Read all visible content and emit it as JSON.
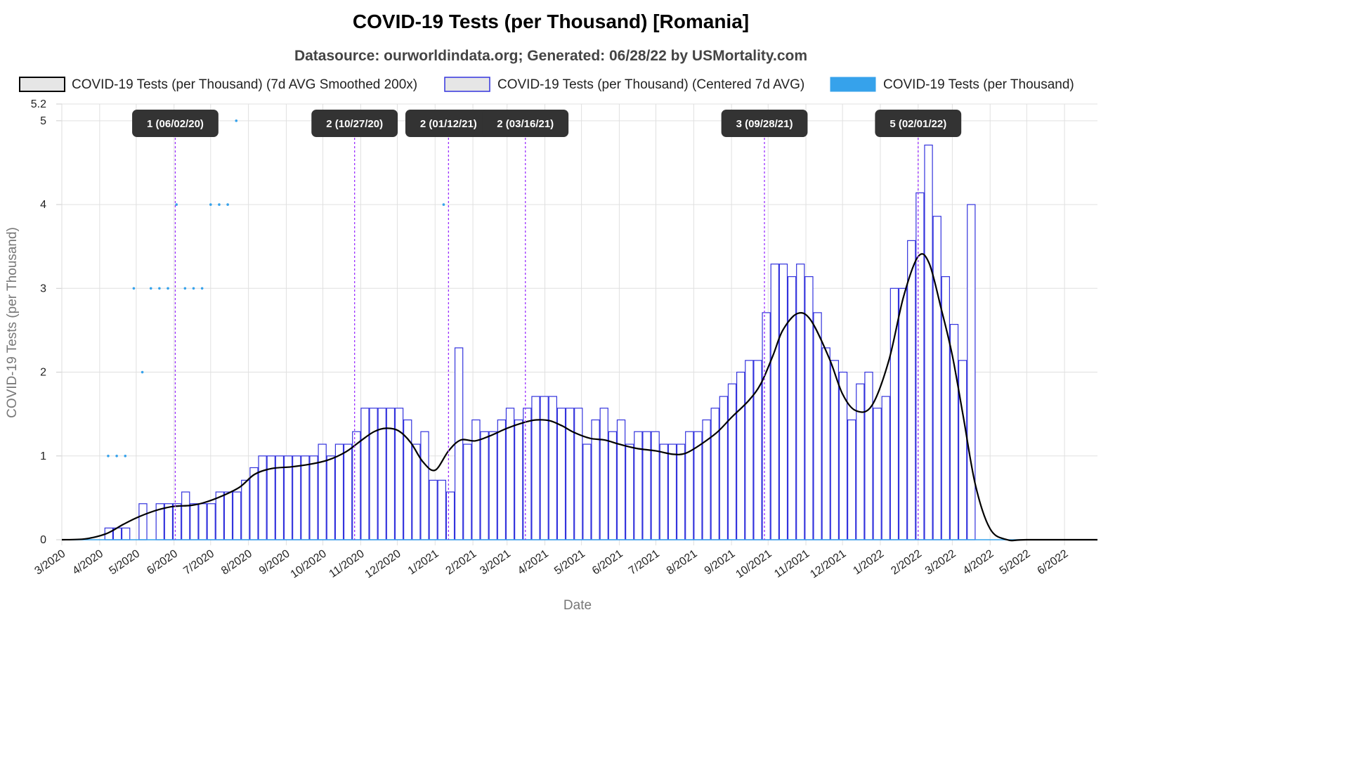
{
  "chart_data": {
    "type": "bar",
    "title": "COVID-19 Tests (per Thousand) [Romania]",
    "subtitle": "Datasource: ourworldindata.org; Generated: 06/28/22 by USMortality.com",
    "xlabel": "Date",
    "ylabel": "COVID-19 Tests (per Thousand)",
    "ylim": [
      0,
      5.2
    ],
    "y_ticks": [
      "0",
      "1",
      "2",
      "3",
      "4",
      "5",
      "5.2"
    ],
    "x_ticks": [
      "3/2020",
      "4/2020",
      "5/2020",
      "6/2020",
      "7/2020",
      "8/2020",
      "9/2020",
      "10/2020",
      "11/2020",
      "12/2020",
      "1/2021",
      "2/2021",
      "3/2021",
      "4/2021",
      "5/2021",
      "6/2021",
      "7/2021",
      "8/2021",
      "9/2021",
      "10/2021",
      "11/2021",
      "12/2021",
      "1/2022",
      "2/2022",
      "3/2022",
      "4/2022",
      "5/2022",
      "6/2022"
    ],
    "x_range": [
      "2020-03-01",
      "2022-06-28"
    ],
    "grid": true,
    "legend_position": "top",
    "series": [
      {
        "name": "COVID-19 Tests (per Thousand) (7d AVG Smoothed 200x)",
        "kind": "line",
        "color": "#000000",
        "x": [
          "2020-03-01",
          "2020-03-20",
          "2020-04-06",
          "2020-04-20",
          "2020-05-01",
          "2020-05-15",
          "2020-05-25",
          "2020-06-02",
          "2020-06-15",
          "2020-06-25",
          "2020-07-10",
          "2020-07-25",
          "2020-08-06",
          "2020-08-20",
          "2020-09-05",
          "2020-09-20",
          "2020-10-05",
          "2020-10-20",
          "2020-11-01",
          "2020-11-12",
          "2020-11-22",
          "2020-12-02",
          "2020-12-12",
          "2020-12-22",
          "2021-01-01",
          "2021-01-12",
          "2021-01-22",
          "2021-02-03",
          "2021-02-15",
          "2021-03-01",
          "2021-03-15",
          "2021-03-25",
          "2021-04-05",
          "2021-04-15",
          "2021-04-25",
          "2021-05-08",
          "2021-05-20",
          "2021-06-01",
          "2021-06-15",
          "2021-07-01",
          "2021-07-15",
          "2021-07-25",
          "2021-08-05",
          "2021-08-20",
          "2021-09-01",
          "2021-09-15",
          "2021-09-25",
          "2021-10-05",
          "2021-10-13",
          "2021-10-25",
          "2021-11-05",
          "2021-11-20",
          "2021-12-01",
          "2021-12-12",
          "2021-12-25",
          "2022-01-08",
          "2022-01-20",
          "2022-02-01",
          "2022-02-10",
          "2022-02-20",
          "2022-03-01",
          "2022-03-10",
          "2022-03-20",
          "2022-04-01",
          "2022-04-15",
          "2022-05-01",
          "2022-06-28"
        ],
        "y": [
          0,
          0.01,
          0.07,
          0.18,
          0.26,
          0.34,
          0.38,
          0.4,
          0.41,
          0.44,
          0.52,
          0.63,
          0.78,
          0.85,
          0.87,
          0.9,
          0.95,
          1.05,
          1.18,
          1.29,
          1.33,
          1.3,
          1.16,
          0.93,
          0.83,
          1.06,
          1.19,
          1.18,
          1.24,
          1.33,
          1.4,
          1.43,
          1.42,
          1.36,
          1.28,
          1.21,
          1.19,
          1.14,
          1.09,
          1.06,
          1.02,
          1.03,
          1.12,
          1.28,
          1.46,
          1.66,
          1.86,
          2.2,
          2.5,
          2.7,
          2.62,
          2.17,
          1.74,
          1.54,
          1.6,
          2.14,
          2.9,
          3.38,
          3.3,
          2.75,
          2.2,
          1.47,
          0.65,
          0.13,
          0.0,
          0,
          0
        ]
      },
      {
        "name": "COVID-19 Tests (per Thousand) (Centered 7d AVG)",
        "kind": "step-bar",
        "color": "#3333dd",
        "fill": "#ffffff",
        "x": [
          "2020-03-01",
          "2020-03-08",
          "2020-03-15",
          "2020-03-22",
          "2020-03-29",
          "2020-04-05",
          "2020-04-12",
          "2020-04-19",
          "2020-04-26",
          "2020-05-03",
          "2020-05-10",
          "2020-05-17",
          "2020-05-24",
          "2020-05-31",
          "2020-06-07",
          "2020-06-14",
          "2020-06-21",
          "2020-06-28",
          "2020-07-05",
          "2020-07-12",
          "2020-07-19",
          "2020-07-26",
          "2020-08-02",
          "2020-08-09",
          "2020-08-16",
          "2020-08-23",
          "2020-08-30",
          "2020-09-06",
          "2020-09-13",
          "2020-09-20",
          "2020-09-27",
          "2020-10-04",
          "2020-10-11",
          "2020-10-18",
          "2020-10-25",
          "2020-11-01",
          "2020-11-08",
          "2020-11-15",
          "2020-11-22",
          "2020-11-29",
          "2020-12-06",
          "2020-12-13",
          "2020-12-20",
          "2020-12-27",
          "2021-01-03",
          "2021-01-10",
          "2021-01-17",
          "2021-01-24",
          "2021-01-31",
          "2021-02-07",
          "2021-02-14",
          "2021-02-21",
          "2021-02-28",
          "2021-03-07",
          "2021-03-14",
          "2021-03-21",
          "2021-03-28",
          "2021-04-04",
          "2021-04-11",
          "2021-04-18",
          "2021-04-25",
          "2021-05-02",
          "2021-05-09",
          "2021-05-16",
          "2021-05-23",
          "2021-05-30",
          "2021-06-06",
          "2021-06-13",
          "2021-06-20",
          "2021-06-27",
          "2021-07-04",
          "2021-07-11",
          "2021-07-18",
          "2021-07-25",
          "2021-08-01",
          "2021-08-08",
          "2021-08-15",
          "2021-08-22",
          "2021-08-29",
          "2021-09-05",
          "2021-09-12",
          "2021-09-19",
          "2021-09-26",
          "2021-10-03",
          "2021-10-10",
          "2021-10-17",
          "2021-10-24",
          "2021-10-31",
          "2021-11-07",
          "2021-11-14",
          "2021-11-21",
          "2021-11-28",
          "2021-12-05",
          "2021-12-12",
          "2021-12-19",
          "2021-12-26",
          "2022-01-02",
          "2022-01-09",
          "2022-01-16",
          "2022-01-23",
          "2022-01-30",
          "2022-02-06",
          "2022-02-13",
          "2022-02-20",
          "2022-02-27",
          "2022-03-06",
          "2022-03-13"
        ],
        "y": [
          0,
          0,
          0,
          0,
          0,
          0.14,
          0.14,
          0.14,
          0,
          0.43,
          0,
          0.43,
          0.43,
          0.43,
          0.57,
          0.43,
          0.43,
          0.43,
          0.57,
          0.57,
          0.57,
          0.71,
          0.86,
          1,
          1,
          1,
          1,
          1,
          1,
          1,
          1.14,
          1,
          1.14,
          1.14,
          1.29,
          1.57,
          1.57,
          1.57,
          1.57,
          1.57,
          1.43,
          1.14,
          1.29,
          0.71,
          0.71,
          0.57,
          2.29,
          1.14,
          1.43,
          1.29,
          1.29,
          1.43,
          1.57,
          1.43,
          1.57,
          1.71,
          1.71,
          1.71,
          1.57,
          1.57,
          1.57,
          1.14,
          1.43,
          1.57,
          1.29,
          1.43,
          1.14,
          1.29,
          1.29,
          1.29,
          1.14,
          1.14,
          1.14,
          1.29,
          1.29,
          1.43,
          1.57,
          1.71,
          1.86,
          2,
          2.14,
          2.14,
          2.71,
          3.29,
          3.29,
          3.14,
          3.29,
          3.14,
          2.71,
          2.29,
          2.14,
          2,
          1.43,
          1.86,
          2,
          1.57,
          1.71,
          3,
          3,
          3.57,
          4.14,
          4.71,
          3.86,
          3.14,
          2.57,
          2.14,
          4
        ]
      },
      {
        "name": "COVID-19 Tests (per Thousand)",
        "kind": "points",
        "color": "#36a2eb",
        "points": [
          {
            "x": "2020-04-08",
            "y": 1
          },
          {
            "x": "2020-04-15",
            "y": 1
          },
          {
            "x": "2020-04-22",
            "y": 1
          },
          {
            "x": "2020-04-29",
            "y": 3
          },
          {
            "x": "2020-05-06",
            "y": 2
          },
          {
            "x": "2020-05-13",
            "y": 3
          },
          {
            "x": "2020-05-20",
            "y": 3
          },
          {
            "x": "2020-05-27",
            "y": 3
          },
          {
            "x": "2020-06-03",
            "y": 4
          },
          {
            "x": "2020-06-10",
            "y": 3
          },
          {
            "x": "2020-06-17",
            "y": 3
          },
          {
            "x": "2020-06-24",
            "y": 3
          },
          {
            "x": "2020-07-01",
            "y": 4
          },
          {
            "x": "2020-07-08",
            "y": 4
          },
          {
            "x": "2020-07-15",
            "y": 4
          },
          {
            "x": "2020-07-22",
            "y": 5
          },
          {
            "x": "2021-01-08",
            "y": 4
          }
        ]
      }
    ],
    "annotations": [
      {
        "label": "1 (06/02/20)",
        "x": "2020-06-02"
      },
      {
        "label": "2 (10/27/20)",
        "x": "2020-10-27"
      },
      {
        "label": "2 (01/12/21)",
        "x": "2021-01-12"
      },
      {
        "label": "2 (03/16/21)",
        "x": "2021-03-16"
      },
      {
        "label": "3 (09/28/21)",
        "x": "2021-09-28"
      },
      {
        "label": "5 (02/01/22)",
        "x": "2022-02-01"
      }
    ],
    "annotation_line_color": "#9b30ff"
  }
}
